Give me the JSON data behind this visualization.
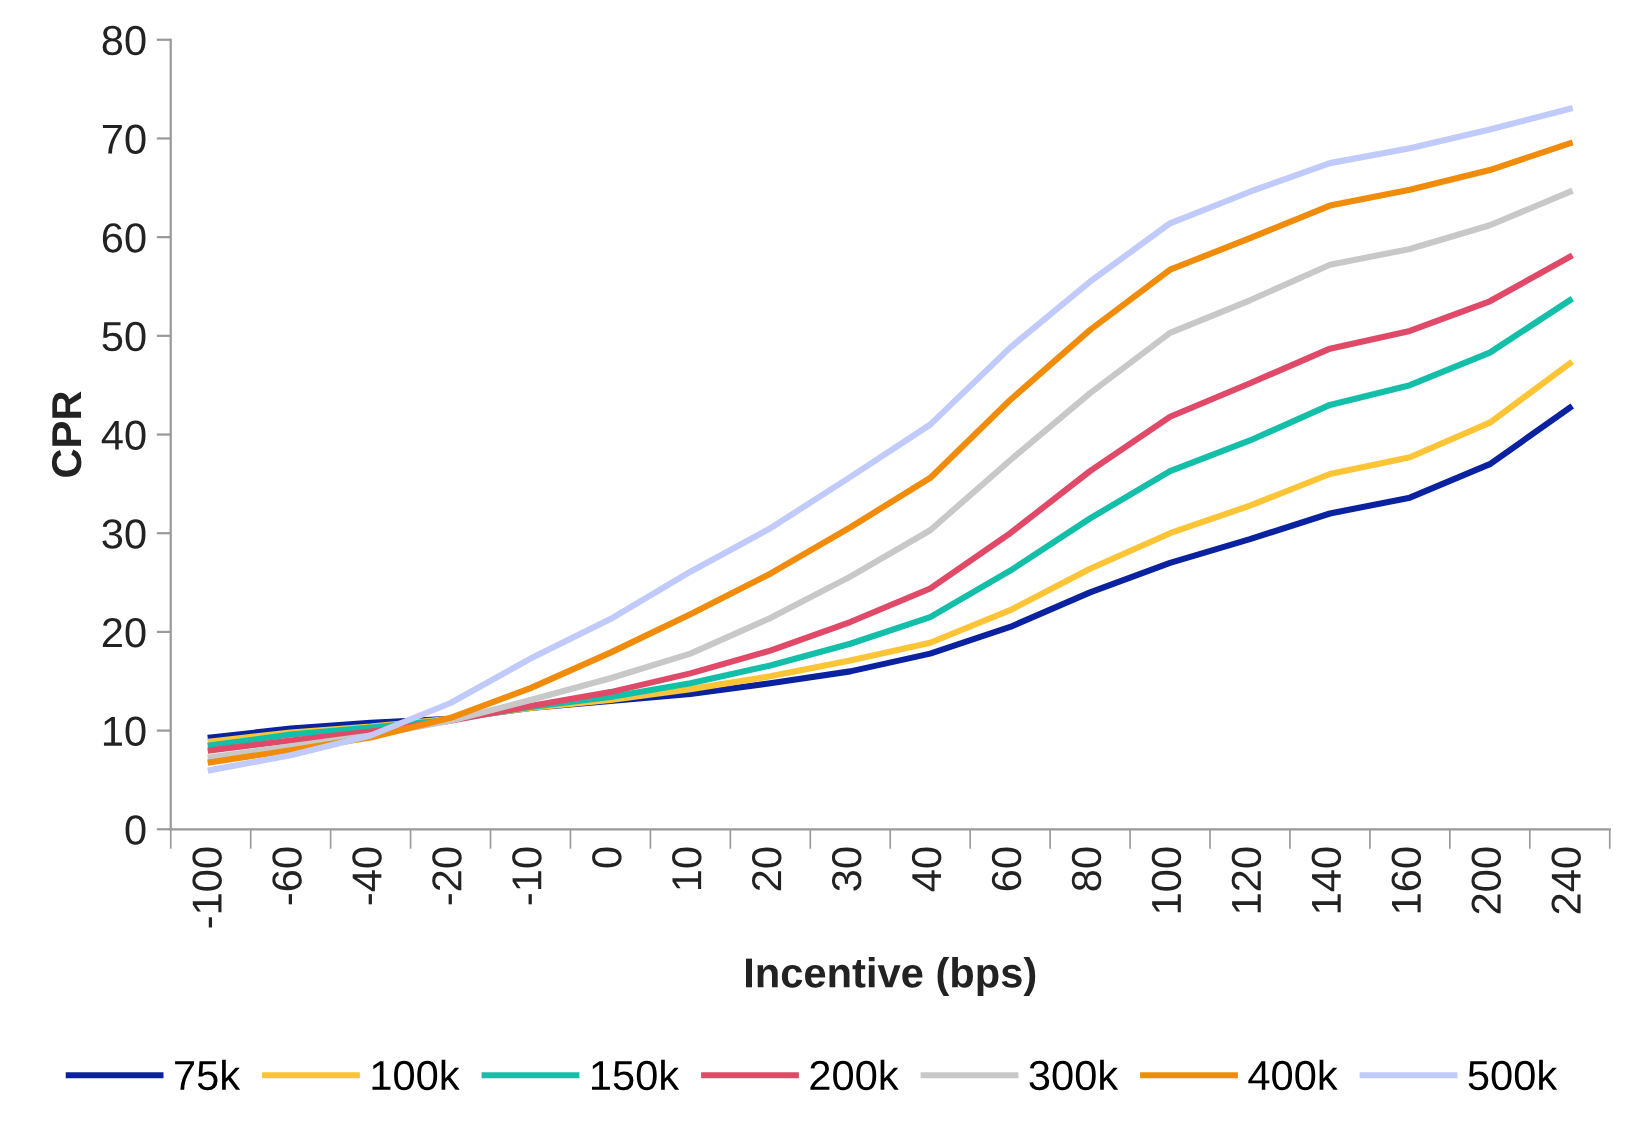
{
  "chart_data": {
    "type": "line",
    "xlabel": "Incentive (bps)",
    "ylabel": "CPR",
    "categories": [
      "-100",
      "-60",
      "-40",
      "-20",
      "-10",
      "0",
      "10",
      "20",
      "30",
      "40",
      "60",
      "80",
      "100",
      "120",
      "140",
      "160",
      "200",
      "240"
    ],
    "ylim": [
      0,
      80
    ],
    "yticks": [
      0,
      10,
      20,
      30,
      40,
      50,
      60,
      70,
      80
    ],
    "grid": false,
    "legend": "bottom",
    "marker": "none",
    "line_style": "solid",
    "series": [
      {
        "name": "75k",
        "color": "#0a22a0",
        "values": [
          9.3,
          10.2,
          10.8,
          11.2,
          12.3,
          13.0,
          13.7,
          14.8,
          16.0,
          17.8,
          20.5,
          24.0,
          27.0,
          29.4,
          32.0,
          33.6,
          37.0,
          42.7
        ]
      },
      {
        "name": "100k",
        "color": "#fdc536",
        "values": [
          8.9,
          9.8,
          10.4,
          11.2,
          12.3,
          13.1,
          14.2,
          15.5,
          17.1,
          18.9,
          22.2,
          26.4,
          30.0,
          32.8,
          36.0,
          37.7,
          41.2,
          47.2
        ]
      },
      {
        "name": "150k",
        "color": "#14bfa9",
        "values": [
          8.5,
          9.6,
          10.3,
          11.1,
          12.4,
          13.4,
          14.8,
          16.6,
          18.8,
          21.5,
          26.2,
          31.5,
          36.3,
          39.4,
          43.0,
          45.0,
          48.3,
          53.6
        ]
      },
      {
        "name": "200k",
        "color": "#e04a68",
        "values": [
          8.0,
          9.0,
          9.9,
          11.0,
          12.5,
          13.9,
          15.8,
          18.1,
          21.0,
          24.4,
          30.0,
          36.3,
          41.8,
          45.2,
          48.7,
          50.5,
          53.5,
          58.0
        ]
      },
      {
        "name": "300k",
        "color": "#c8c8c8",
        "values": [
          7.3,
          8.4,
          9.5,
          11.0,
          13.1,
          15.3,
          17.8,
          21.4,
          25.6,
          30.3,
          37.4,
          44.2,
          50.3,
          53.6,
          57.2,
          58.8,
          61.2,
          64.6
        ]
      },
      {
        "name": "400k",
        "color": "#f08c0a",
        "values": [
          6.8,
          8.0,
          9.3,
          11.3,
          14.3,
          17.9,
          21.8,
          25.9,
          30.6,
          35.6,
          43.5,
          50.6,
          56.7,
          59.9,
          63.2,
          64.8,
          66.8,
          69.5
        ]
      },
      {
        "name": "500k",
        "color": "#c0cbfb",
        "values": [
          6.0,
          7.5,
          9.5,
          12.8,
          17.3,
          21.3,
          26.1,
          30.5,
          35.7,
          41.0,
          48.8,
          55.5,
          61.4,
          64.6,
          67.5,
          69.0,
          70.9,
          73.0
        ]
      }
    ]
  }
}
